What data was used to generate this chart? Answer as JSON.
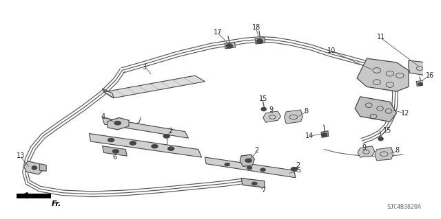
{
  "background_color": "#ffffff",
  "diagram_code": "SJC4B3820A",
  "fig_width": 6.4,
  "fig_height": 3.19,
  "dpi": 100,
  "line_color": "#444444",
  "light_fill": "#e0e0e0",
  "lw_main": 1.2,
  "lw_thin": 0.7,
  "lw_thick": 1.8,
  "font_size": 7,
  "label_color": "#222222"
}
